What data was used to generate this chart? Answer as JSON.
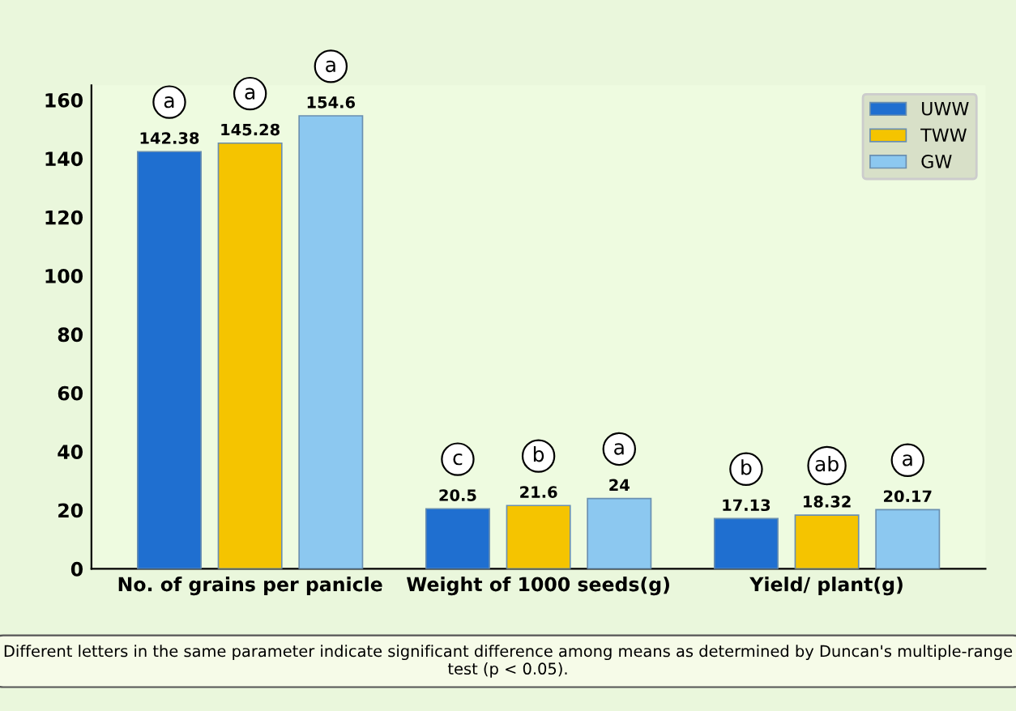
{
  "chart_data": {
    "type": "bar",
    "categories": [
      "No. of grains per panicle",
      "Weight of 1000 seeds(g)",
      "Yield/ plant(g)"
    ],
    "series": [
      {
        "name": "UWW",
        "color": "#1f6fd0",
        "values": [
          142.38,
          20.5,
          17.13
        ]
      },
      {
        "name": "TWW",
        "color": "#f5c400",
        "values": [
          145.28,
          21.6,
          18.32
        ]
      },
      {
        "name": "GW",
        "color": "#8cc8f0",
        "values": [
          154.6,
          24,
          20.17
        ]
      }
    ],
    "ylim": [
      0,
      165
    ],
    "yticks": [
      0,
      20,
      40,
      60,
      80,
      100,
      120,
      140,
      160
    ],
    "data_labels": true,
    "legend": "top right",
    "grid": false,
    "annotations": [
      "a",
      "a",
      "a",
      "c",
      "b",
      "a",
      "b",
      "ab",
      "a",
      "Different letters in the same parameter indicate significant difference among means as determined by Duncan's multiple-range test (p < 0.05)."
    ]
  }
}
